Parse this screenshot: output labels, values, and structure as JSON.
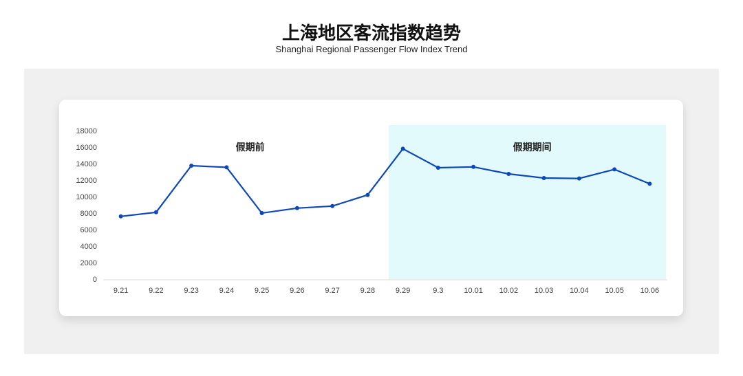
{
  "title": "上海地区客流指数趋势",
  "subtitle": "Shanghai Regional Passenger Flow Index Trend",
  "chart_data": {
    "type": "line",
    "categories": [
      "9.21",
      "9.22",
      "9.23",
      "9.24",
      "9.25",
      "9.26",
      "9.27",
      "9.28",
      "9.29",
      "9.3",
      "10.01",
      "10.02",
      "10.03",
      "10.04",
      "10.05",
      "10.06"
    ],
    "values": [
      7600,
      8100,
      13750,
      13550,
      8000,
      8600,
      8850,
      10200,
      15800,
      13500,
      13600,
      12750,
      12250,
      12200,
      13300,
      11550
    ],
    "yticks": [
      0,
      2000,
      4000,
      6000,
      8000,
      10000,
      12000,
      14000,
      16000,
      18000
    ],
    "ylim": [
      0,
      18000
    ],
    "grid": false,
    "line_color": "#0d47b8",
    "annotations": [
      {
        "text": "假期前",
        "category": "9.25"
      },
      {
        "text": "假期期间",
        "category": "10.03"
      }
    ],
    "shaded_region": {
      "from": "9.29",
      "to": "10.06",
      "color": "#e3fafd"
    }
  }
}
